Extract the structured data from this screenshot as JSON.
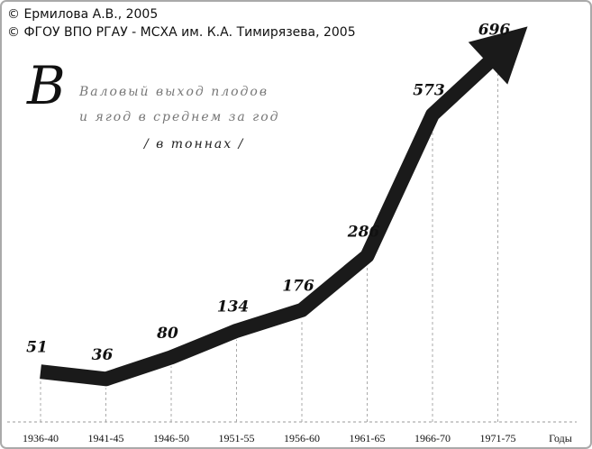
{
  "chart_data": {
    "type": "arrow",
    "copyright": [
      "© Ермилова А.В., 2005",
      "© ФГОУ ВПО РГАУ - МСХА им. К.А. Тимирязева, 2005"
    ],
    "title": [
      "Валовый выход плодов",
      "и ягод в среднем за год",
      "/ в тоннах /"
    ],
    "x_label": "Годы",
    "categories": [
      "1936-40",
      "1941-45",
      "1946-50",
      "1951-55",
      "1956-60",
      "1961-65",
      "1966-70",
      "1971-75"
    ],
    "values": [
      51,
      36,
      80,
      134,
      176,
      286,
      573,
      696
    ],
    "color": "#1a1a1a"
  }
}
